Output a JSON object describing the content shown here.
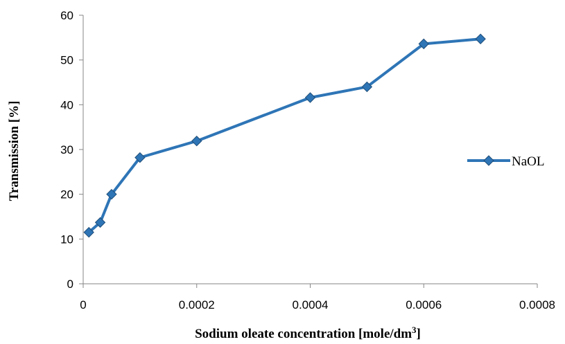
{
  "chart_data": {
    "type": "line",
    "xlabel": "Sodium oleate concentration [mole/dm",
    "xlabel_sup": "3",
    "xlabel_end": "]",
    "ylabel": "Transmission [%]",
    "xlim": [
      0,
      0.0008
    ],
    "ylim": [
      0,
      60
    ],
    "x_ticks": [
      "0",
      "0.0002",
      "0.0004",
      "0.0006",
      "0.0008"
    ],
    "y_ticks": [
      "0",
      "10",
      "20",
      "30",
      "40",
      "50",
      "60"
    ],
    "grid": false,
    "legend_position": "right",
    "series": [
      {
        "name": "NaOL",
        "color": "#2e75b6",
        "marker": "diamond",
        "x": [
          1e-05,
          3e-05,
          5e-05,
          0.0001,
          0.0002,
          0.0004,
          0.0005,
          0.0006,
          0.0007
        ],
        "y": [
          11.5,
          13.7,
          20.0,
          28.2,
          31.9,
          41.6,
          44.0,
          53.6,
          54.7
        ]
      }
    ]
  }
}
